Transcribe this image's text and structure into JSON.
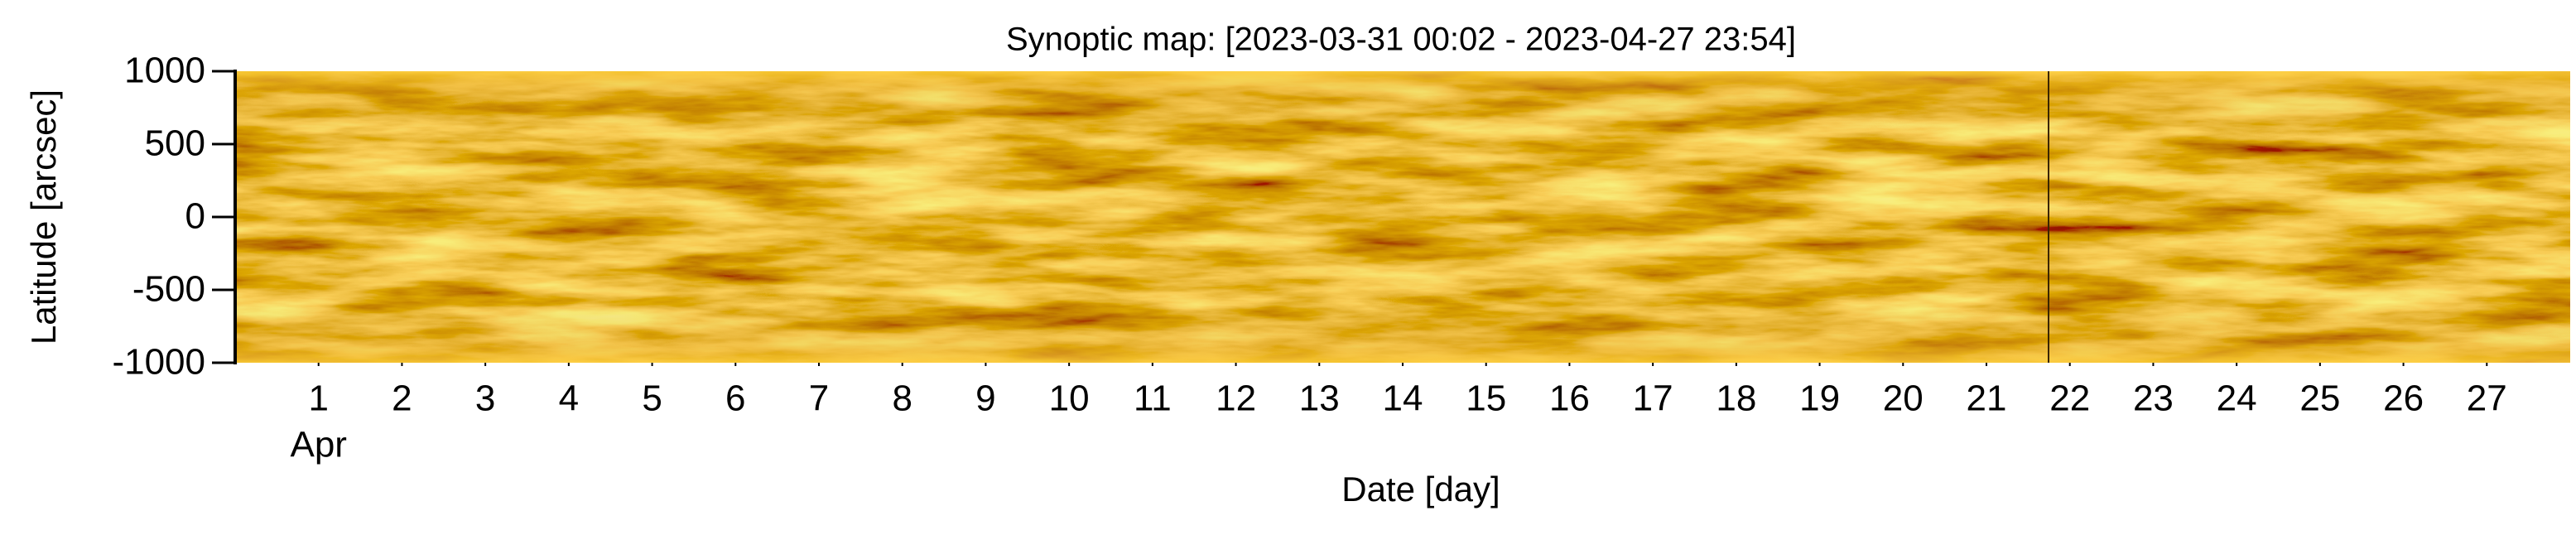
{
  "chart_data": {
    "type": "synoptic-map",
    "title": "Synoptic map: [2023-03-31 00:02 - 2023-04-27 23:54]",
    "x_label": "Date [day]",
    "y_label": "Latitude [arcsec]",
    "xlim": [
      0,
      28
    ],
    "xticks": [
      1,
      2,
      3,
      4,
      5,
      6,
      7,
      8,
      9,
      10,
      11,
      12,
      13,
      14,
      15,
      16,
      17,
      18,
      19,
      20,
      21,
      22,
      23,
      24,
      25,
      26,
      27
    ],
    "annotations": [
      {
        "text": "Apr",
        "x": 1
      }
    ],
    "ylim": [
      -1000,
      1000
    ],
    "yticks": [
      -1000,
      -500,
      0,
      500,
      1000
    ],
    "colormap": [
      "#5a3a00",
      "#d08a0a",
      "#ffe070"
    ]
  }
}
